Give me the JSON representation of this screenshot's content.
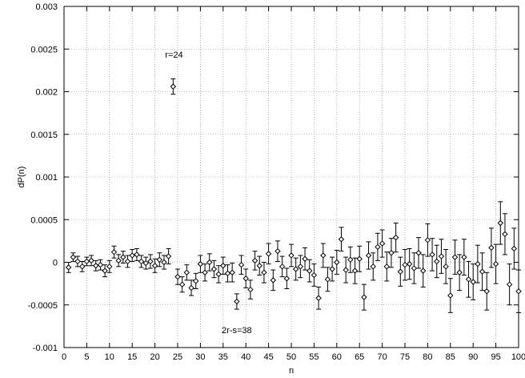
{
  "chart_data": {
    "type": "scatter",
    "title": "",
    "xlabel": "n",
    "ylabel": "dP(n)",
    "xlim": [
      0,
      100
    ],
    "ylim": [
      -0.001,
      0.003
    ],
    "xticks": [
      0,
      5,
      10,
      15,
      20,
      25,
      30,
      35,
      40,
      45,
      50,
      55,
      60,
      65,
      70,
      75,
      80,
      85,
      90,
      95,
      100
    ],
    "xtick_labels": [
      "0",
      "5",
      "10",
      "15",
      "20",
      "25",
      "30",
      "35",
      "40",
      "45",
      "50",
      "55",
      "60",
      "65",
      "70",
      "75",
      "80",
      "85",
      "90",
      "95",
      "100"
    ],
    "yticks": [
      -0.001,
      -0.0005,
      0,
      0.0005,
      0.001,
      0.0015,
      0.002,
      0.0025,
      0.003
    ],
    "ytick_labels": [
      "-0.001",
      "-0.0005",
      "0",
      "0.0005",
      "0.001",
      "0.0015",
      "0.002",
      "0.0025",
      "0.003"
    ],
    "grid": true,
    "marker": "diamond",
    "error_bars": true,
    "points": [
      {
        "x": 1,
        "y": -6e-05,
        "err": 6e-05
      },
      {
        "x": 2,
        "y": 6e-05,
        "err": 5e-05
      },
      {
        "x": 3,
        "y": 1e-05,
        "err": 6e-05
      },
      {
        "x": 4,
        "y": -5e-05,
        "err": 6e-05
      },
      {
        "x": 5,
        "y": 1e-05,
        "err": 5e-05
      },
      {
        "x": 6,
        "y": 2e-05,
        "err": 6e-05
      },
      {
        "x": 7,
        "y": -4e-05,
        "err": 6e-05
      },
      {
        "x": 8,
        "y": -3e-05,
        "err": 6e-05
      },
      {
        "x": 9,
        "y": -0.0001,
        "err": 7e-05
      },
      {
        "x": 10,
        "y": -5e-05,
        "err": 7e-05
      },
      {
        "x": 11,
        "y": 0.00012,
        "err": 7e-05
      },
      {
        "x": 12,
        "y": 2e-05,
        "err": 7e-05
      },
      {
        "x": 13,
        "y": 6e-05,
        "err": 7e-05
      },
      {
        "x": 14,
        "y": 1e-05,
        "err": 7e-05
      },
      {
        "x": 15,
        "y": 8e-05,
        "err": 7e-05
      },
      {
        "x": 16,
        "y": 9e-05,
        "err": 7e-05
      },
      {
        "x": 17,
        "y": 1e-05,
        "err": 7e-05
      },
      {
        "x": 18,
        "y": -1e-05,
        "err": 7e-05
      },
      {
        "x": 19,
        "y": 1e-05,
        "err": 8e-05
      },
      {
        "x": 20,
        "y": -4e-05,
        "err": 8e-05
      },
      {
        "x": 21,
        "y": 3e-05,
        "err": 8e-05
      },
      {
        "x": 22,
        "y": 0.0,
        "err": 8e-05
      },
      {
        "x": 23,
        "y": 7e-05,
        "err": 9e-05
      },
      {
        "x": 24,
        "y": 0.00206,
        "err": 9e-05
      },
      {
        "x": 25,
        "y": -0.00017,
        "err": 9e-05
      },
      {
        "x": 26,
        "y": -0.00026,
        "err": 9e-05
      },
      {
        "x": 27,
        "y": -0.00012,
        "err": 9e-05
      },
      {
        "x": 28,
        "y": -0.0003,
        "err": 9e-05
      },
      {
        "x": 29,
        "y": -0.00022,
        "err": 9e-05
      },
      {
        "x": 30,
        "y": -2e-05,
        "err": 0.0001
      },
      {
        "x": 31,
        "y": -0.00012,
        "err": 0.0001
      },
      {
        "x": 32,
        "y": 0.0,
        "err": 0.0001
      },
      {
        "x": 33,
        "y": -8e-05,
        "err": 0.0001
      },
      {
        "x": 34,
        "y": -0.00014,
        "err": 0.0001
      },
      {
        "x": 35,
        "y": -4e-05,
        "err": 0.0001
      },
      {
        "x": 36,
        "y": -0.00013,
        "err": 0.0001
      },
      {
        "x": 37,
        "y": -0.00012,
        "err": 0.00011
      },
      {
        "x": 38,
        "y": -0.00046,
        "err": 9e-05
      },
      {
        "x": 39,
        "y": -3e-05,
        "err": 0.00011
      },
      {
        "x": 40,
        "y": -0.00019,
        "err": 0.00011
      },
      {
        "x": 41,
        "y": -0.00032,
        "err": 0.00011
      },
      {
        "x": 42,
        "y": 2e-05,
        "err": 0.00011
      },
      {
        "x": 43,
        "y": -4e-05,
        "err": 0.00011
      },
      {
        "x": 44,
        "y": -0.00012,
        "err": 0.00012
      },
      {
        "x": 45,
        "y": 0.0001,
        "err": 0.00012
      },
      {
        "x": 46,
        "y": -0.00021,
        "err": 0.00012
      },
      {
        "x": 47,
        "y": 0.00013,
        "err": 0.00012
      },
      {
        "x": 48,
        "y": -5e-05,
        "err": 0.00012
      },
      {
        "x": 49,
        "y": -0.00019,
        "err": 0.00012
      },
      {
        "x": 50,
        "y": 8e-05,
        "err": 0.00013
      },
      {
        "x": 51,
        "y": -8e-05,
        "err": 0.00013
      },
      {
        "x": 52,
        "y": -5e-05,
        "err": 0.00013
      },
      {
        "x": 53,
        "y": 4e-05,
        "err": 0.00013
      },
      {
        "x": 54,
        "y": -0.0001,
        "err": 0.00013
      },
      {
        "x": 55,
        "y": -0.00015,
        "err": 0.00013
      },
      {
        "x": 56,
        "y": -0.00042,
        "err": 0.00013
      },
      {
        "x": 57,
        "y": 8e-05,
        "err": 0.00014
      },
      {
        "x": 58,
        "y": -0.0002,
        "err": 0.00014
      },
      {
        "x": 59,
        "y": -8e-05,
        "err": 0.00014
      },
      {
        "x": 60,
        "y": 0.0,
        "err": 0.00014
      },
      {
        "x": 61,
        "y": 0.00027,
        "err": 0.00014
      },
      {
        "x": 62,
        "y": -9e-05,
        "err": 0.00015
      },
      {
        "x": 63,
        "y": 3e-05,
        "err": 0.00015
      },
      {
        "x": 64,
        "y": -0.0001,
        "err": 0.00015
      },
      {
        "x": 65,
        "y": 4e-05,
        "err": 0.00015
      },
      {
        "x": 66,
        "y": -0.00041,
        "err": 0.00015
      },
      {
        "x": 67,
        "y": 8e-05,
        "err": 0.00016
      },
      {
        "x": 68,
        "y": -5e-05,
        "err": 0.00016
      },
      {
        "x": 69,
        "y": 0.00018,
        "err": 0.00016
      },
      {
        "x": 70,
        "y": 0.00022,
        "err": 0.00016
      },
      {
        "x": 71,
        "y": -5e-05,
        "err": 0.00017
      },
      {
        "x": 72,
        "y": 0.00011,
        "err": 0.00017
      },
      {
        "x": 73,
        "y": 0.00029,
        "err": 0.00017
      },
      {
        "x": 74,
        "y": -0.00011,
        "err": 0.00017
      },
      {
        "x": 75,
        "y": -3e-05,
        "err": 0.00018
      },
      {
        "x": 76,
        "y": -2e-05,
        "err": 0.00018
      },
      {
        "x": 77,
        "y": -7e-05,
        "err": 0.00018
      },
      {
        "x": 78,
        "y": 0.00011,
        "err": 0.00018
      },
      {
        "x": 79,
        "y": -0.0001,
        "err": 0.00019
      },
      {
        "x": 80,
        "y": 0.00026,
        "err": 0.00019
      },
      {
        "x": 81,
        "y": 9e-05,
        "err": 0.00019
      },
      {
        "x": 82,
        "y": 1e-05,
        "err": 0.00019
      },
      {
        "x": 83,
        "y": 7e-05,
        "err": 0.0002
      },
      {
        "x": 84,
        "y": -5e-05,
        "err": 0.0002
      },
      {
        "x": 85,
        "y": -0.00039,
        "err": 0.0002
      },
      {
        "x": 86,
        "y": 6e-05,
        "err": 0.0002
      },
      {
        "x": 87,
        "y": -0.00012,
        "err": 0.00021
      },
      {
        "x": 88,
        "y": 6e-05,
        "err": 0.00021
      },
      {
        "x": 89,
        "y": -0.0002,
        "err": 0.00021
      },
      {
        "x": 90,
        "y": -0.00023,
        "err": 0.00021
      },
      {
        "x": 91,
        "y": -2e-05,
        "err": 0.00022
      },
      {
        "x": 92,
        "y": -0.00011,
        "err": 0.00022
      },
      {
        "x": 93,
        "y": -0.00034,
        "err": 0.00022
      },
      {
        "x": 94,
        "y": 0.00017,
        "err": 0.00023
      },
      {
        "x": 95,
        "y": -2e-05,
        "err": 0.00023
      },
      {
        "x": 96,
        "y": 0.00046,
        "err": 0.00025
      },
      {
        "x": 97,
        "y": 0.00033,
        "err": 0.00024
      },
      {
        "x": 98,
        "y": -0.00026,
        "err": 0.00024
      },
      {
        "x": 99,
        "y": 0.00016,
        "err": 0.00024
      },
      {
        "x": 100,
        "y": -0.00034,
        "err": 0.00025
      }
    ],
    "annotations": [
      {
        "text": "r=24",
        "x": 24.2,
        "y": 0.0024
      },
      {
        "text": "2r-s=38",
        "x": 38.0,
        "y": -0.00083
      }
    ]
  }
}
